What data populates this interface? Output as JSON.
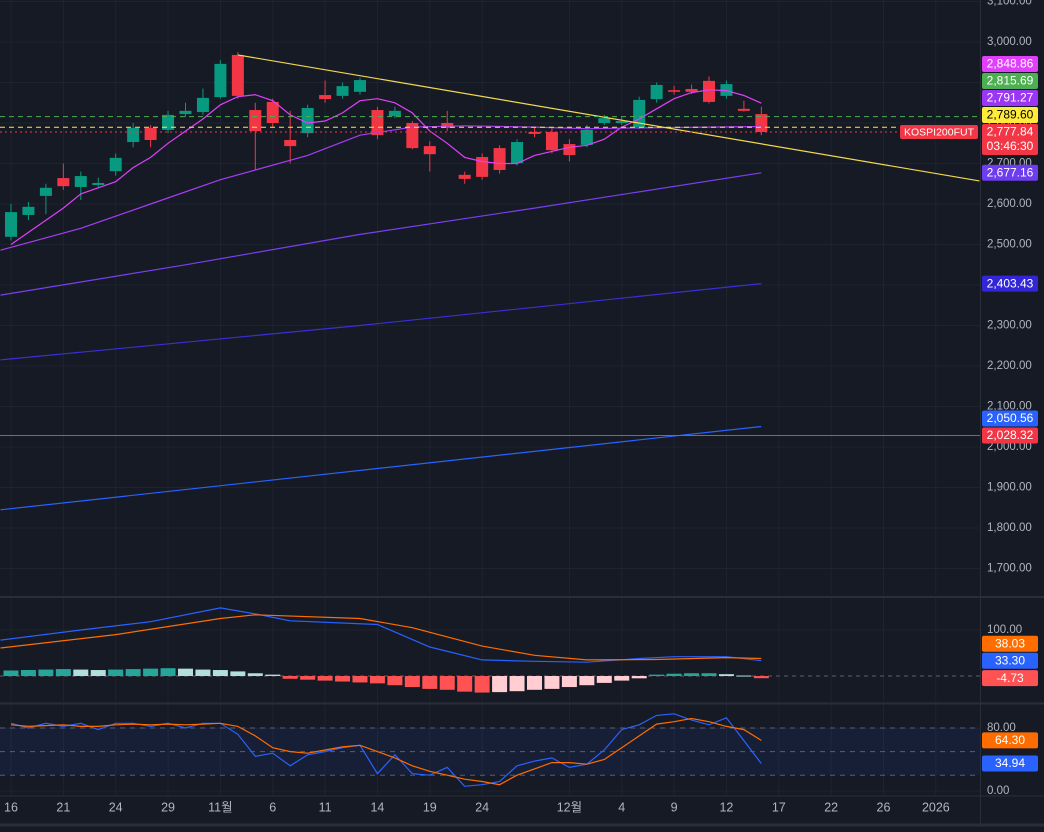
{
  "chart_data": [
    {
      "type": "candlestick",
      "x": [
        0,
        1,
        2,
        3,
        4,
        5,
        6,
        7,
        8,
        9,
        10,
        11,
        12,
        13,
        14,
        15,
        16,
        17,
        18,
        19,
        20,
        21,
        22,
        23,
        24,
        25,
        26,
        27,
        28,
        29,
        30,
        31,
        32,
        33,
        34,
        35,
        36,
        37,
        38,
        39,
        40,
        41,
        42,
        43
      ],
      "open": [
        2519,
        2573,
        2620,
        2664,
        2642,
        2647,
        2681,
        2753,
        2788,
        2783,
        2822,
        2827,
        2864,
        2968,
        2832,
        2852,
        2758,
        2775,
        2869,
        2867,
        2877,
        2832,
        2817,
        2800,
        2743,
        2800,
        2672,
        2716,
        2738,
        2701,
        2778,
        2778,
        2748,
        2746,
        2800,
        2800,
        2790,
        2859,
        2881,
        2884,
        2904,
        2867,
        2835,
        2822
      ],
      "high": [
        2600,
        2605,
        2650,
        2700,
        2680,
        2665,
        2725,
        2800,
        2795,
        2830,
        2850,
        2885,
        2955,
        2975,
        2850,
        2860,
        2830,
        2845,
        2905,
        2900,
        2912,
        2840,
        2840,
        2805,
        2755,
        2830,
        2680,
        2725,
        2745,
        2760,
        2790,
        2790,
        2760,
        2795,
        2820,
        2815,
        2865,
        2900,
        2892,
        2895,
        2915,
        2905,
        2855,
        2840
      ],
      "low": [
        2510,
        2560,
        2575,
        2635,
        2610,
        2640,
        2670,
        2740,
        2740,
        2775,
        2815,
        2820,
        2860,
        2860,
        2684,
        2790,
        2700,
        2765,
        2850,
        2860,
        2870,
        2760,
        2812,
        2735,
        2680,
        2780,
        2650,
        2660,
        2675,
        2695,
        2765,
        2725,
        2705,
        2740,
        2795,
        2795,
        2785,
        2850,
        2870,
        2872,
        2848,
        2860,
        2828,
        2770
      ],
      "close": [
        2580,
        2593,
        2640,
        2644,
        2669,
        2652,
        2714,
        2788,
        2758,
        2820,
        2830,
        2862,
        2946,
        2867,
        2780,
        2800,
        2743,
        2837,
        2859,
        2891,
        2906,
        2770,
        2830,
        2738,
        2723,
        2788,
        2662,
        2667,
        2684,
        2753,
        2773,
        2733,
        2721,
        2783,
        2812,
        2805,
        2857,
        2894,
        2877,
        2877,
        2852,
        2896,
        2830,
        2777.84
      ],
      "up_color": "#089981",
      "down_color": "#f23645",
      "series": [
        {
          "color": "#e040fb",
          "x": [
            0,
            1,
            2,
            3,
            4,
            5,
            6,
            7,
            8,
            9,
            10,
            11,
            12,
            13,
            14,
            15,
            16,
            17,
            18,
            19,
            20,
            21,
            22,
            23,
            24,
            25,
            26,
            27,
            28,
            29,
            30,
            31,
            32,
            33,
            34,
            35,
            36,
            37,
            38,
            39,
            40,
            41,
            42,
            43
          ],
          "values": [
            2500,
            2530,
            2560,
            2590,
            2625,
            2640,
            2655,
            2690,
            2715,
            2750,
            2780,
            2810,
            2845,
            2865,
            2870,
            2855,
            2820,
            2800,
            2805,
            2825,
            2855,
            2860,
            2850,
            2825,
            2780,
            2750,
            2715,
            2705,
            2700,
            2700,
            2720,
            2730,
            2740,
            2745,
            2760,
            2790,
            2810,
            2835,
            2860,
            2875,
            2882,
            2880,
            2868,
            2848.86
          ]
        },
        {
          "color": "#a73df5",
          "x": [
            -0.6,
            4,
            8,
            12,
            14,
            17,
            20,
            23,
            26,
            30,
            33,
            36,
            40,
            43
          ],
          "values": [
            2486,
            2540,
            2600,
            2660,
            2684,
            2720,
            2770,
            2790,
            2793,
            2790,
            2786,
            2788,
            2790,
            2791.27
          ]
        },
        {
          "color": "#7a3ff0",
          "x": [
            -0.6,
            10,
            20,
            30,
            43
          ],
          "values": [
            2375,
            2450,
            2525,
            2590,
            2677.16
          ]
        },
        {
          "color": "#3a2fd6",
          "x": [
            -0.6,
            20,
            43
          ],
          "values": [
            2215,
            2300,
            2403.43
          ]
        },
        {
          "color": "#2962ff",
          "x": [
            -0.6,
            43
          ],
          "values": [
            1845,
            2050.56
          ]
        }
      ],
      "trendline": {
        "color": "#f2d94e",
        "x": [
          13,
          55.5
        ],
        "values": [
          2968,
          2657
        ]
      },
      "hlines": [
        {
          "value": 2028.32,
          "color": "#f23645",
          "style": "solid"
        },
        {
          "value": 2815.69,
          "color": "#4caf50",
          "style": "dashed"
        },
        {
          "value": 2789.6,
          "color": "#ffeb3b",
          "style": "dashed"
        },
        {
          "value": 2777.84,
          "color": "#f23645",
          "style": "dotted"
        }
      ],
      "price_labels": [
        {
          "value": 2848.86,
          "label": "2,848.86",
          "color": "#e040fb"
        },
        {
          "value": 2815.69,
          "label": "2,815.69",
          "color": "#4caf50"
        },
        {
          "value": 2791.27,
          "label": "2,791.27",
          "color": "#9c36f5"
        },
        {
          "value": 2789.6,
          "label": "2,789.60",
          "color": "#ffeb3b",
          "text_color": "#000000"
        },
        {
          "value": 2777.84,
          "label": "2,777.84",
          "color": "#f23645",
          "countdown": "03:46:30"
        },
        {
          "value": 2677.16,
          "label": "2,677.16",
          "color": "#6f3df0"
        },
        {
          "value": 2403.43,
          "label": "2,403.43",
          "color": "#3326d6"
        },
        {
          "value": 2050.56,
          "label": "2,050.56",
          "color": "#2962ff"
        },
        {
          "value": 2028.32,
          "label": "2,028.32",
          "color": "#f23645"
        }
      ],
      "symbol": "KOSPI200FUT",
      "xlim": [
        -0.63,
        55.53
      ],
      "ylim": [
        1634.6,
        3103.7
      ],
      "xticks": [
        {
          "value": 0,
          "label": "16"
        },
        {
          "value": 3,
          "label": "21"
        },
        {
          "value": 6,
          "label": "24"
        },
        {
          "value": 9,
          "label": "29"
        },
        {
          "value": 12,
          "label": "11월"
        },
        {
          "value": 15,
          "label": "6"
        },
        {
          "value": 18,
          "label": "11"
        },
        {
          "value": 21,
          "label": "14"
        },
        {
          "value": 24,
          "label": "19"
        },
        {
          "value": 27,
          "label": "24"
        },
        {
          "value": 32,
          "label": "12월"
        },
        {
          "value": 35,
          "label": "4"
        },
        {
          "value": 38,
          "label": "9"
        },
        {
          "value": 41,
          "label": "12"
        },
        {
          "value": 44,
          "label": "17"
        },
        {
          "value": 47,
          "label": "22"
        },
        {
          "value": 50,
          "label": "26"
        },
        {
          "value": 53,
          "label": "2026"
        }
      ],
      "yticks": [
        {
          "value": 1700,
          "label": "1,700.00"
        },
        {
          "value": 1800,
          "label": "1,800.00"
        },
        {
          "value": 1900,
          "label": "1,900.00"
        },
        {
          "value": 2000,
          "label": "2,000.00"
        },
        {
          "value": 2100,
          "label": "2,100.00"
        },
        {
          "value": 2200,
          "label": "2,200.00"
        },
        {
          "value": 2300,
          "label": "2,300.00"
        },
        {
          "value": 2400,
          "label": "2,400.00"
        },
        {
          "value": 2500,
          "label": "2,500.00"
        },
        {
          "value": 2600,
          "label": "2,600.00"
        },
        {
          "value": 2700,
          "label": "2,700.00"
        },
        {
          "value": 2800,
          "label": "2,800.00"
        },
        {
          "value": 2900,
          "label": "2,900.00"
        },
        {
          "value": 3000,
          "label": "3,000.00"
        },
        {
          "value": 3100,
          "label": "3,100.00"
        }
      ],
      "grid": true
    },
    {
      "type": "macd",
      "x": [
        0,
        1,
        2,
        3,
        4,
        5,
        6,
        7,
        8,
        9,
        10,
        11,
        12,
        13,
        14,
        15,
        16,
        17,
        18,
        19,
        20,
        21,
        22,
        23,
        24,
        25,
        26,
        27,
        28,
        29,
        30,
        31,
        32,
        33,
        34,
        35,
        36,
        37,
        38,
        39,
        40,
        41,
        42,
        43
      ],
      "histogram": [
        12,
        13,
        14,
        15,
        14,
        13,
        14,
        15,
        16,
        17,
        16,
        14,
        13,
        10,
        6,
        3,
        -6,
        -8,
        -10,
        -12,
        -14,
        -16,
        -20,
        -24,
        -28,
        -30,
        -34,
        -36,
        -35,
        -33,
        -30,
        -28,
        -24,
        -20,
        -15,
        -10,
        -5,
        3,
        5,
        6,
        6,
        4,
        1,
        -4.73
      ],
      "hist_colors": [
        "#26a69a",
        "#b2dfdb",
        "#ff5252",
        "#ffcdd2"
      ],
      "series": [
        {
          "color": "#2962ff",
          "x": [
            -0.6,
            4,
            8,
            12,
            14,
            16,
            21,
            24,
            27,
            30,
            33,
            36,
            38,
            41,
            43
          ],
          "values": [
            78,
            100,
            118,
            148,
            135,
            120,
            112,
            63,
            35,
            32,
            30,
            38,
            42,
            42,
            33.3
          ]
        },
        {
          "color": "#ff6d00",
          "x": [
            -0.6,
            6,
            12,
            14,
            20,
            23,
            27,
            30,
            33,
            37,
            41,
            43
          ],
          "values": [
            61,
            90,
            125,
            133,
            125,
            105,
            65,
            45,
            35,
            36,
            40,
            38.03
          ]
        }
      ],
      "price_labels": [
        {
          "value": 38.03,
          "label": "38.03",
          "color": "#ff6d00"
        },
        {
          "value": 33.3,
          "label": "33.30",
          "color": "#2962ff"
        },
        {
          "value": -4.73,
          "label": "-4.73",
          "color": "#ff5252"
        }
      ],
      "ylim": [
        -56.5,
        169.6
      ],
      "yticks": [
        {
          "value": 100,
          "label": "100.00"
        }
      ],
      "zero_line": 0,
      "grid": true
    },
    {
      "type": "stochastic",
      "series": [
        {
          "color": "#2962ff",
          "x": [
            0,
            1,
            2,
            3,
            4,
            5,
            6,
            7,
            8,
            9,
            10,
            11,
            12,
            13,
            14,
            15,
            16,
            17,
            18,
            19,
            20,
            21,
            22,
            23,
            24,
            25,
            26,
            27,
            28,
            29,
            30,
            31,
            32,
            33,
            34,
            35,
            36,
            37,
            38,
            39,
            40,
            41,
            42,
            43
          ],
          "values": [
            86,
            80,
            86,
            82,
            86,
            78,
            86,
            86,
            82,
            86,
            80,
            86,
            86,
            72,
            44,
            48,
            32,
            46,
            50,
            55,
            58,
            22,
            46,
            22,
            20,
            30,
            6,
            8,
            12,
            32,
            38,
            42,
            30,
            34,
            52,
            78,
            84,
            96,
            98,
            90,
            84,
            93,
            64,
            34.94
          ]
        },
        {
          "color": "#ff6d00",
          "x": [
            0,
            1,
            2,
            3,
            4,
            5,
            6,
            7,
            8,
            9,
            10,
            11,
            12,
            13,
            14,
            15,
            16,
            17,
            18,
            19,
            20,
            21,
            22,
            23,
            24,
            25,
            26,
            27,
            28,
            29,
            30,
            31,
            32,
            33,
            34,
            35,
            36,
            37,
            38,
            39,
            40,
            41,
            42,
            43
          ],
          "values": [
            84,
            82,
            83,
            84,
            82,
            82,
            84,
            85,
            84,
            85,
            84,
            85,
            86,
            82,
            70,
            55,
            50,
            48,
            52,
            56,
            58,
            50,
            42,
            32,
            25,
            20,
            15,
            12,
            8,
            20,
            28,
            36,
            36,
            34,
            40,
            55,
            70,
            85,
            88,
            92,
            88,
            82,
            78,
            64.3
          ]
        }
      ],
      "band": [
        20,
        80
      ],
      "midline": 50,
      "band_color": "#2962ff",
      "price_labels": [
        {
          "value": 64.3,
          "label": "64.30",
          "color": "#ff6d00"
        },
        {
          "value": 34.94,
          "label": "34.94",
          "color": "#2962ff"
        }
      ],
      "ylim": [
        -5.1,
        109.2
      ],
      "yticks": [
        {
          "value": 80,
          "label": "80.00"
        },
        {
          "value": 0,
          "label": "0.00"
        }
      ],
      "grid": true
    }
  ]
}
